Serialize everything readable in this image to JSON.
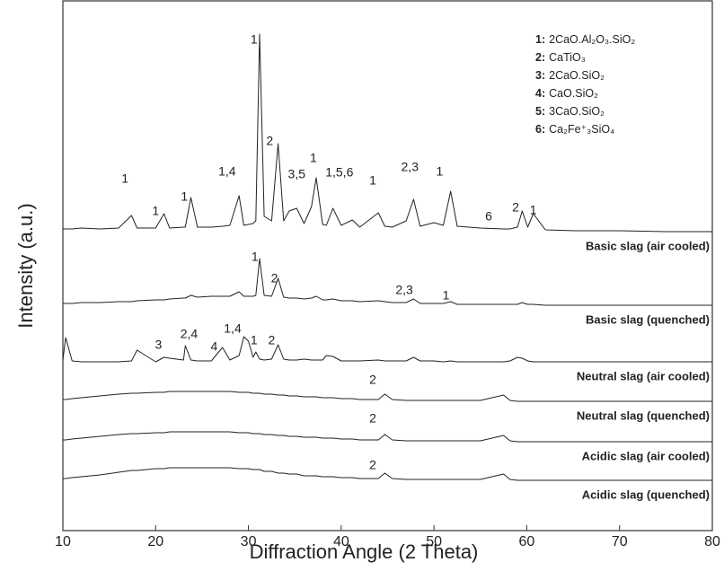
{
  "chart_data": {
    "type": "line",
    "xlabel": "Diffraction Angle (2 Theta)",
    "ylabel": "Intensity (a.u.)",
    "xlim": [
      10,
      80
    ],
    "xticks": [
      10,
      20,
      30,
      40,
      50,
      60,
      70,
      80
    ],
    "ylim": [
      0,
      590
    ],
    "legend_loc": "upper right",
    "line_color": "#222222",
    "x": [
      10,
      10.3,
      11,
      12,
      14,
      16,
      17.4,
      18,
      20,
      20.9,
      21.5,
      23,
      23.2,
      23.8,
      24.5,
      26,
      27.2,
      28,
      29.0,
      29.5,
      30.0,
      30.5,
      30.8,
      31.2,
      31.7,
      32.5,
      33.2,
      33.8,
      34.4,
      35.2,
      36,
      36.8,
      37.3,
      38,
      38.4,
      39.1,
      40,
      41.2,
      42,
      44.0,
      44.7,
      45.5,
      47,
      47.8,
      48.5,
      50,
      51,
      51.8,
      52.5,
      55,
      57.5,
      58.2,
      59.0,
      59.5,
      60.1,
      60.7,
      62,
      65,
      70,
      75,
      80
    ],
    "series": [
      {
        "name": "Basic slag (air cooled)",
        "values": [
          336,
          336,
          336,
          337,
          336,
          337,
          351,
          337,
          337,
          353,
          337,
          338,
          338,
          371,
          338,
          338,
          339,
          340,
          373,
          340,
          341,
          342,
          345,
          553,
          350,
          345,
          431,
          345,
          356,
          359,
          342,
          361,
          393,
          341,
          340,
          359,
          340,
          346,
          338,
          354,
          339,
          338,
          345,
          369,
          339,
          343,
          340,
          378,
          339,
          337,
          336,
          336,
          338,
          356,
          338,
          353,
          335,
          334,
          334,
          333,
          333
        ]
      },
      {
        "name": "Basic slag (quenched)",
        "values": [
          253,
          253,
          253,
          254,
          254,
          255,
          255,
          256,
          257,
          257,
          258,
          259,
          259,
          262,
          260,
          261,
          261,
          261,
          266,
          261,
          261,
          261,
          262,
          303,
          262,
          261,
          281,
          260,
          259,
          259,
          258,
          259,
          261,
          257,
          257,
          258,
          256,
          256,
          255,
          256,
          255,
          254,
          254,
          258,
          253,
          253,
          253,
          255,
          252,
          252,
          252,
          252,
          252,
          254,
          252,
          252,
          251,
          251,
          251,
          251,
          251
        ]
      },
      {
        "name": "Neutral slag (air cooled)",
        "values": [
          190,
          215,
          189,
          188,
          188,
          188,
          189,
          201,
          188,
          193,
          192,
          190,
          206,
          190,
          189,
          189,
          204,
          190,
          195,
          216,
          211,
          193,
          199,
          191,
          190,
          191,
          207,
          191,
          190,
          190,
          191,
          190,
          190,
          190,
          195,
          194,
          189,
          189,
          189,
          190,
          189,
          189,
          189,
          193,
          189,
          189,
          188,
          189,
          188,
          188,
          188,
          189,
          193,
          192,
          189,
          188,
          188,
          188,
          188,
          188,
          188
        ]
      },
      {
        "name": "Neutral slag (quenched)",
        "values": [
          146,
          146,
          147,
          148,
          150,
          152,
          153,
          153,
          154,
          154,
          155,
          155,
          155,
          155,
          155,
          155,
          155,
          155,
          154,
          154,
          154,
          153,
          153,
          153,
          152,
          152,
          151,
          151,
          150,
          150,
          149,
          149,
          149,
          148,
          148,
          148,
          147,
          147,
          146,
          146,
          152,
          146,
          145,
          145,
          145,
          145,
          145,
          145,
          145,
          145,
          151,
          145,
          144,
          144,
          144,
          144,
          144,
          144,
          144,
          144,
          144
        ]
      },
      {
        "name": "Acidic slag (air cooled)",
        "values": [
          101,
          101,
          102,
          103,
          105,
          107,
          108,
          108,
          109,
          109,
          110,
          110,
          110,
          110,
          110,
          110,
          110,
          110,
          109,
          109,
          109,
          108,
          108,
          108,
          107,
          107,
          106,
          106,
          105,
          105,
          104,
          104,
          104,
          103,
          103,
          103,
          102,
          102,
          101,
          101,
          107,
          101,
          100,
          100,
          100,
          100,
          100,
          100,
          100,
          100,
          106,
          100,
          99,
          99,
          99,
          99,
          99,
          99,
          99,
          99,
          99
        ]
      },
      {
        "name": "Acidic slag (quenched)",
        "values": [
          58,
          58,
          59,
          60,
          62,
          65,
          67,
          67,
          69,
          69,
          70,
          70,
          70,
          70,
          70,
          70,
          70,
          70,
          69,
          69,
          69,
          68,
          68,
          68,
          66,
          66,
          64,
          64,
          63,
          63,
          61,
          61,
          61,
          60,
          60,
          60,
          59,
          59,
          58,
          58,
          64,
          58,
          57,
          57,
          57,
          57,
          57,
          57,
          57,
          57,
          63,
          57,
          56,
          56,
          56,
          56,
          56,
          56,
          56,
          56,
          56
        ]
      }
    ],
    "annotations": [
      {
        "text": "1",
        "x": 30.6,
        "y": 546
      },
      {
        "text": "2",
        "x": 32.3,
        "y": 433
      },
      {
        "text": "1",
        "x": 16.7,
        "y": 391
      },
      {
        "text": "1",
        "x": 20.0,
        "y": 355
      },
      {
        "text": "1",
        "x": 23.1,
        "y": 371
      },
      {
        "text": "1,4",
        "x": 27.7,
        "y": 399
      },
      {
        "text": "3,5",
        "x": 35.2,
        "y": 396
      },
      {
        "text": "1",
        "x": 37.0,
        "y": 414
      },
      {
        "text": "1,5,6",
        "x": 39.8,
        "y": 398
      },
      {
        "text": "1",
        "x": 43.4,
        "y": 389
      },
      {
        "text": "2,3",
        "x": 47.4,
        "y": 404
      },
      {
        "text": "1",
        "x": 50.6,
        "y": 399
      },
      {
        "text": "6",
        "x": 55.9,
        "y": 349
      },
      {
        "text": "2",
        "x": 58.8,
        "y": 359
      },
      {
        "text": "1",
        "x": 60.7,
        "y": 356
      },
      {
        "text": "1",
        "x": 30.7,
        "y": 304
      },
      {
        "text": "2",
        "x": 32.8,
        "y": 280
      },
      {
        "text": "2,3",
        "x": 46.8,
        "y": 267
      },
      {
        "text": "1",
        "x": 51.3,
        "y": 261
      },
      {
        "text": "3",
        "x": 20.3,
        "y": 206
      },
      {
        "text": "2,4",
        "x": 23.6,
        "y": 218
      },
      {
        "text": "4",
        "x": 26.3,
        "y": 204
      },
      {
        "text": "1,4",
        "x": 28.3,
        "y": 224
      },
      {
        "text": "1",
        "x": 30.6,
        "y": 211
      },
      {
        "text": "2",
        "x": 32.5,
        "y": 211
      },
      {
        "text": "2",
        "x": 43.4,
        "y": 167
      },
      {
        "text": "2",
        "x": 43.4,
        "y": 124
      },
      {
        "text": "2",
        "x": 43.4,
        "y": 72
      }
    ],
    "phase_key": [
      {
        "key": "1:",
        "text": "2CaO.Al₂O₃.SiO₂"
      },
      {
        "key": "2:",
        "text": "CaTiO₃"
      },
      {
        "key": "3:",
        "text": "2CaO.SiO₂"
      },
      {
        "key": "4:",
        "text": "CaO.SiO₂"
      },
      {
        "key": "5:",
        "text": "3CaO.SiO₂"
      },
      {
        "key": "6:",
        "text": "Ca₂Fe⁺₃SiO₄"
      }
    ]
  }
}
